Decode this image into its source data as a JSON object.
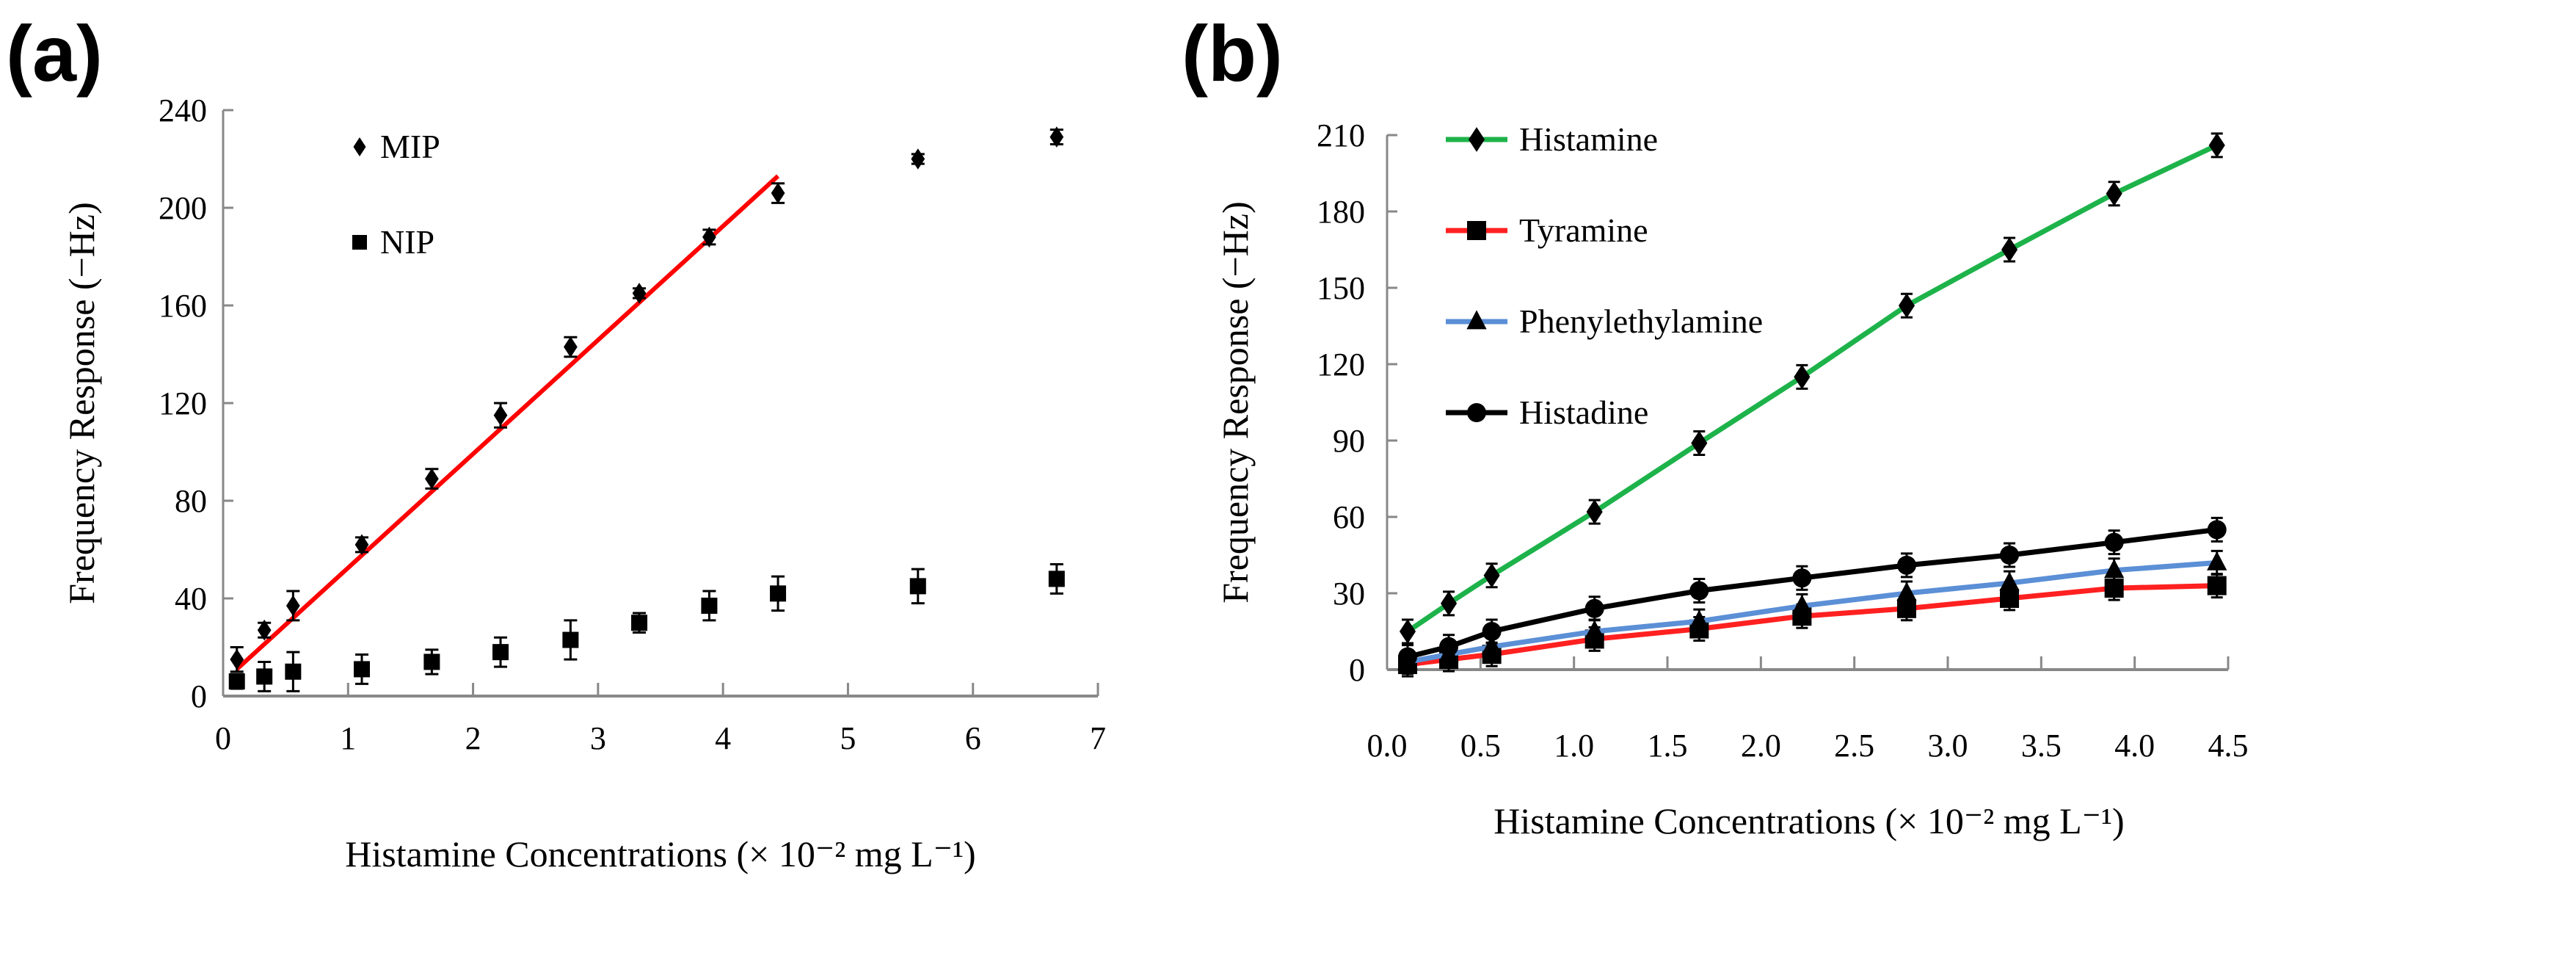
{
  "chart_data": [
    {
      "panel_label": "(a)",
      "type": "scatter",
      "xlabel": "Histamine Concentrations (× 10⁻² mg L⁻¹)",
      "ylabel": "Frequency Response (−Hz)",
      "xlim": [
        0,
        7
      ],
      "ylim": [
        0,
        240
      ],
      "xticks": [
        "0",
        "1",
        "2",
        "3",
        "4",
        "5",
        "6",
        "7"
      ],
      "yticks": [
        "0",
        "40",
        "80",
        "120",
        "160",
        "200",
        "240"
      ],
      "legend_position": "top-left",
      "x": [
        0.11,
        0.33,
        0.56,
        1.11,
        1.67,
        2.22,
        2.78,
        3.33,
        3.89,
        4.44,
        5.56,
        6.67
      ],
      "series": [
        {
          "name": "MIP",
          "marker": "diamond",
          "color": "#000000",
          "values": [
            15,
            27,
            37,
            62,
            89,
            115,
            143,
            165,
            188,
            206,
            220,
            229
          ],
          "errors": [
            5,
            3,
            6,
            3,
            4,
            5,
            4,
            2,
            3,
            4,
            2,
            3
          ]
        },
        {
          "name": "NIP",
          "marker": "square",
          "color": "#000000",
          "values": [
            6,
            8,
            10,
            11,
            14,
            18,
            23,
            30,
            37,
            42,
            45,
            48
          ],
          "errors": [
            3,
            6,
            8,
            6,
            5,
            6,
            8,
            4,
            6,
            7,
            7,
            6
          ]
        }
      ],
      "fit_line": {
        "color": "#ff0000",
        "x": [
          0.11,
          4.44
        ],
        "y": [
          11,
          213
        ]
      }
    },
    {
      "panel_label": "(b)",
      "type": "line",
      "xlabel": "Histamine Concentrations (× 10⁻² mg L⁻¹)",
      "ylabel": "Frequency Response (−Hz)",
      "xlim": [
        0,
        4.5
      ],
      "ylim": [
        0,
        210
      ],
      "xticks": [
        "0.0",
        "0.5",
        "1.0",
        "1.5",
        "2.0",
        "2.5",
        "3.0",
        "3.5",
        "4.0",
        "4.5"
      ],
      "yticks": [
        "0",
        "30",
        "60",
        "90",
        "120",
        "150",
        "180",
        "210"
      ],
      "legend_position": "top-left",
      "x": [
        0.11,
        0.33,
        0.56,
        1.11,
        1.67,
        2.22,
        2.78,
        3.33,
        3.89,
        4.44
      ],
      "series": [
        {
          "name": "Histamine",
          "marker": "diamond",
          "color": "#1db34a",
          "values": [
            15,
            26,
            37,
            62,
            89,
            115,
            143,
            165,
            187,
            206
          ]
        },
        {
          "name": "Tyramine",
          "marker": "square",
          "color": "#ff2020",
          "values": [
            2,
            4,
            6,
            12,
            16,
            21,
            24,
            28,
            32,
            33
          ]
        },
        {
          "name": "Phenylethylamine",
          "marker": "triangle",
          "color": "#5b8fd6",
          "values": [
            3,
            6,
            9,
            15,
            19,
            25,
            30,
            34,
            39,
            42
          ]
        },
        {
          "name": "Histadine",
          "marker": "circle",
          "color": "#000000",
          "values": [
            5,
            9,
            15,
            24,
            31,
            36,
            41,
            45,
            50,
            55
          ]
        }
      ]
    }
  ]
}
